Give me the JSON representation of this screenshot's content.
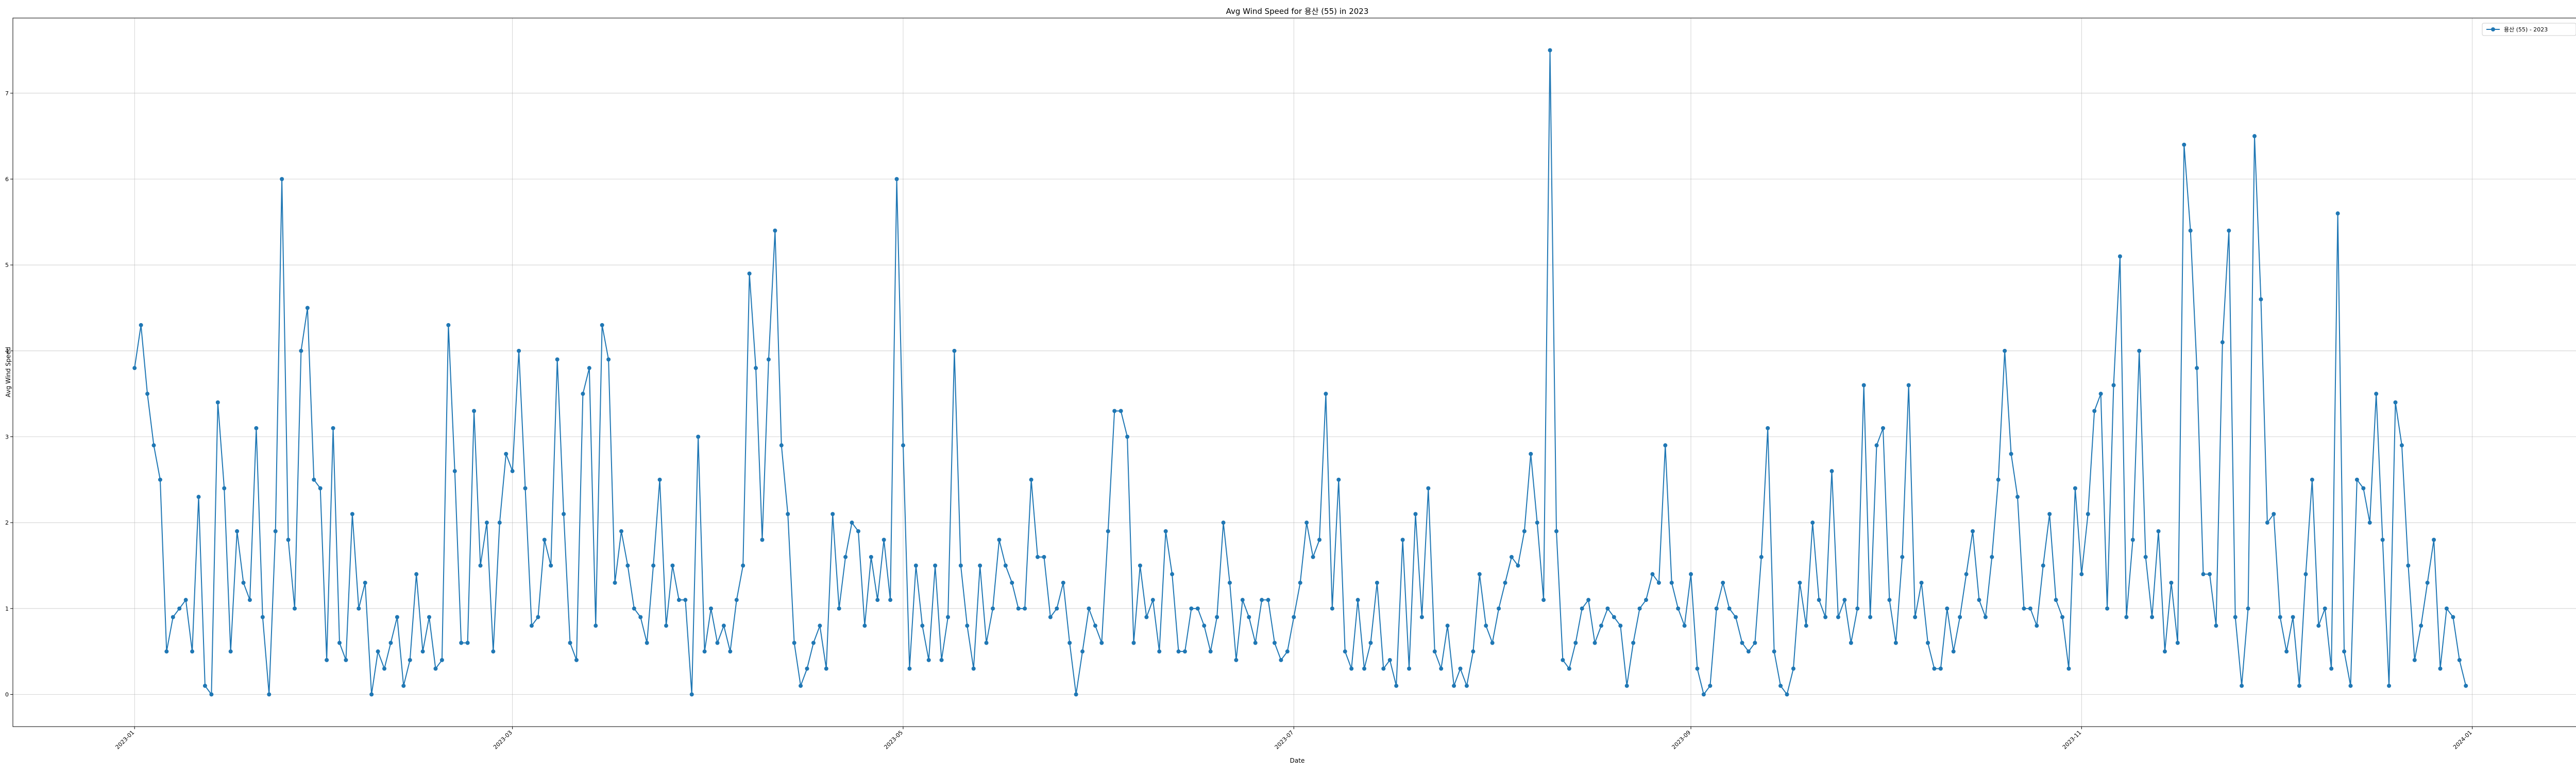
{
  "chart_data": {
    "type": "line",
    "title": "Avg Wind Speed for 용산 (55) in 2023",
    "xlabel": "Date",
    "ylabel": "Avg Wind Speed",
    "x_ticks": [
      "2023-01",
      "2023-03",
      "2023-05",
      "2023-07",
      "2023-09",
      "2023-11",
      "2024-01"
    ],
    "y_ticks": [
      "0",
      "1",
      "2",
      "3",
      "4",
      "5",
      "6",
      "7"
    ],
    "xlim": [
      "2022-12-13",
      "2024-01-18"
    ],
    "ylim": [
      -0.375,
      7.875
    ],
    "grid": true,
    "legend_position": "top-right",
    "series": [
      {
        "name": "용산 (55) - 2023",
        "color": "#1f77b4",
        "start_date": "2023-01-01",
        "values": [
          3.8,
          4.3,
          3.5,
          2.9,
          2.5,
          0.5,
          0.9,
          1.0,
          1.1,
          0.5,
          2.3,
          0.1,
          0.0,
          3.4,
          2.4,
          0.5,
          1.9,
          1.3,
          1.1,
          3.1,
          0.9,
          0.0,
          1.9,
          6.0,
          1.8,
          1.0,
          4.0,
          4.5,
          2.5,
          2.4,
          0.4,
          3.1,
          0.6,
          0.4,
          2.1,
          1.0,
          1.3,
          0.0,
          0.5,
          0.3,
          0.6,
          0.9,
          0.1,
          0.4,
          1.4,
          0.5,
          0.9,
          0.3,
          0.4,
          4.3,
          2.6,
          0.6,
          0.6,
          3.3,
          1.5,
          2.0,
          0.5,
          2.0,
          2.8,
          2.6,
          4.0,
          2.4,
          0.8,
          0.9,
          1.8,
          1.5,
          3.9,
          2.1,
          0.6,
          0.4,
          3.5,
          3.8,
          0.8,
          4.3,
          3.9,
          1.3,
          1.9,
          1.5,
          1.0,
          0.9,
          0.6,
          1.5,
          2.5,
          0.8,
          1.5,
          1.1,
          1.1,
          0.0,
          3.0,
          0.5,
          1.0,
          0.6,
          0.8,
          0.5,
          1.1,
          1.5,
          4.9,
          3.8,
          1.8,
          3.9,
          5.4,
          2.9,
          2.1,
          0.6,
          0.1,
          0.3,
          0.6,
          0.8,
          0.3,
          2.1,
          1.0,
          1.6,
          2.0,
          1.9,
          0.8,
          1.6,
          1.1,
          1.8,
          1.1,
          6.0,
          2.9,
          0.3,
          1.5,
          0.8,
          0.4,
          1.5,
          0.4,
          0.9,
          4.0,
          1.5,
          0.8,
          0.3,
          1.5,
          0.6,
          1.0,
          1.8,
          1.5,
          1.3,
          1.0,
          1.0,
          2.5,
          1.6,
          1.6,
          0.9,
          1.0,
          1.3,
          0.6,
          0.0,
          0.5,
          1.0,
          0.8,
          0.6,
          1.9,
          3.3,
          3.3,
          3.0,
          0.6,
          1.5,
          0.9,
          1.1,
          0.5,
          1.9,
          1.4,
          0.5,
          0.5,
          1.0,
          1.0,
          0.8,
          0.5,
          0.9,
          2.0,
          1.3,
          0.4,
          1.1,
          0.9,
          0.6,
          1.1,
          1.1,
          0.6,
          0.4,
          0.5,
          0.9,
          1.3,
          2.0,
          1.6,
          1.8,
          3.5,
          1.0,
          2.5,
          0.5,
          0.3,
          1.1,
          0.3,
          0.6,
          1.3,
          0.3,
          0.4,
          0.1,
          1.8,
          0.3,
          2.1,
          0.9,
          2.4,
          0.5,
          0.3,
          0.8,
          0.1,
          0.3,
          0.1,
          0.5,
          1.4,
          0.8,
          0.6,
          1.0,
          1.3,
          1.6,
          1.5,
          1.9,
          2.8,
          2.0,
          1.1,
          7.5,
          1.9,
          0.4,
          0.3,
          0.6,
          1.0,
          1.1,
          0.6,
          0.8,
          1.0,
          0.9,
          0.8,
          0.1,
          0.6,
          1.0,
          1.1,
          1.4,
          1.3,
          2.9,
          1.3,
          1.0,
          0.8,
          1.4,
          0.3,
          0.0,
          0.1,
          1.0,
          1.3,
          1.0,
          0.9,
          0.6,
          0.5,
          0.6,
          1.6,
          3.1,
          0.5,
          0.1,
          0.0,
          0.3,
          1.3,
          0.8,
          2.0,
          1.1,
          0.9,
          2.6,
          0.9,
          1.1,
          0.6,
          1.0,
          3.6,
          0.9,
          2.9,
          3.1,
          1.1,
          0.6,
          1.6,
          3.6,
          0.9,
          1.3,
          0.6,
          0.3,
          0.3,
          1.0,
          0.5,
          0.9,
          1.4,
          1.9,
          1.1,
          0.9,
          1.6,
          2.5,
          4.0,
          2.8,
          2.3,
          1.0,
          1.0,
          0.8,
          1.5,
          2.1,
          1.1,
          0.9,
          0.3,
          2.4,
          1.4,
          2.1,
          3.3,
          3.5,
          1.0,
          3.6,
          5.1,
          0.9,
          1.8,
          4.0,
          1.6,
          0.9,
          1.9,
          0.5,
          1.3,
          0.6,
          6.4,
          5.4,
          3.8,
          1.4,
          1.4,
          0.8,
          4.1,
          5.4,
          0.9,
          0.1,
          1.0,
          6.5,
          4.6,
          2.0,
          2.1,
          0.9,
          0.5,
          0.9,
          0.1,
          1.4,
          2.5,
          0.8,
          1.0,
          0.3,
          5.6,
          0.5,
          0.1,
          2.5,
          2.4,
          2.0,
          3.5,
          1.8,
          0.1,
          3.4,
          2.9,
          1.5,
          0.4,
          0.8,
          1.3,
          1.8,
          0.3,
          1.0,
          0.9,
          0.4,
          0.1
        ]
      }
    ]
  }
}
